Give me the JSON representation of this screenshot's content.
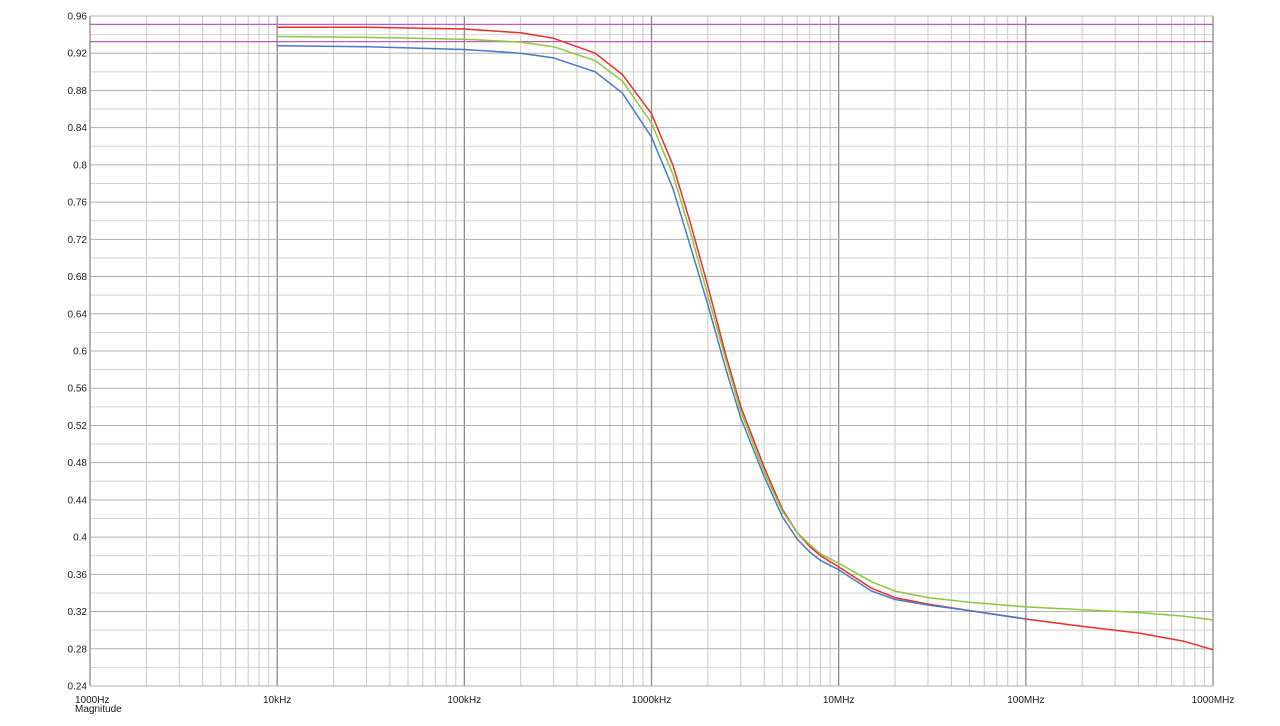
{
  "chart_data": {
    "type": "line",
    "xscale": "log",
    "xlim": [
      1000,
      1000000000
    ],
    "ylim": [
      0.24,
      0.96
    ],
    "grid": true,
    "ylabel": "Magnitude",
    "xtick_labels": [
      "1000Hz",
      "10kHz",
      "100kHz",
      "1000kHz",
      "10MHz",
      "100MHz",
      "1000MHz"
    ],
    "ytick_labels": [
      "0.24",
      "0.28",
      "0.32",
      "0.36",
      "0.4",
      "0.44",
      "0.48",
      "0.52",
      "0.56",
      "0.6",
      "0.64",
      "0.68",
      "0.72",
      "0.76",
      "0.8",
      "0.84",
      "0.88",
      "0.92",
      "0.96"
    ],
    "reference_lines": [
      {
        "y": 0.951,
        "color": "#c05ac0"
      },
      {
        "y": 0.9325,
        "color": "#c05ac0"
      }
    ],
    "series": [
      {
        "color": "#e8302a",
        "points": [
          [
            10000,
            0.948
          ],
          [
            30000,
            0.948
          ],
          [
            100000,
            0.946
          ],
          [
            200000,
            0.942
          ],
          [
            300000,
            0.936
          ],
          [
            500000,
            0.92
          ],
          [
            700000,
            0.897
          ],
          [
            1000000,
            0.855
          ],
          [
            1300000,
            0.8
          ],
          [
            1600000,
            0.74
          ],
          [
            2000000,
            0.67
          ],
          [
            2500000,
            0.595
          ],
          [
            3000000,
            0.54
          ],
          [
            4000000,
            0.475
          ],
          [
            5000000,
            0.43
          ],
          [
            6000000,
            0.405
          ],
          [
            7000000,
            0.39
          ],
          [
            8000000,
            0.38
          ],
          [
            10000000,
            0.368
          ],
          [
            15000000,
            0.345
          ],
          [
            20000000,
            0.335
          ],
          [
            30000000,
            0.328
          ],
          [
            50000000,
            0.321
          ],
          [
            100000000,
            0.312
          ],
          [
            200000000,
            0.304
          ],
          [
            400000000,
            0.297
          ],
          [
            700000000,
            0.288
          ],
          [
            1000000000,
            0.279
          ]
        ]
      },
      {
        "color": "#8cc63e",
        "points": [
          [
            10000,
            0.938
          ],
          [
            30000,
            0.937
          ],
          [
            100000,
            0.935
          ],
          [
            200000,
            0.932
          ],
          [
            300000,
            0.927
          ],
          [
            500000,
            0.912
          ],
          [
            700000,
            0.89
          ],
          [
            1000000,
            0.845
          ],
          [
            1300000,
            0.79
          ],
          [
            1600000,
            0.73
          ],
          [
            2000000,
            0.66
          ],
          [
            2500000,
            0.59
          ],
          [
            3000000,
            0.535
          ],
          [
            4000000,
            0.47
          ],
          [
            5000000,
            0.428
          ],
          [
            6000000,
            0.405
          ],
          [
            7000000,
            0.392
          ],
          [
            8000000,
            0.382
          ],
          [
            10000000,
            0.372
          ],
          [
            15000000,
            0.352
          ],
          [
            20000000,
            0.342
          ],
          [
            30000000,
            0.335
          ],
          [
            50000000,
            0.33
          ],
          [
            100000000,
            0.325
          ],
          [
            200000000,
            0.322
          ],
          [
            400000000,
            0.319
          ],
          [
            700000000,
            0.315
          ],
          [
            1000000000,
            0.311
          ]
        ]
      },
      {
        "color": "#4a78c8",
        "points": [
          [
            10000,
            0.928
          ],
          [
            30000,
            0.927
          ],
          [
            100000,
            0.924
          ],
          [
            200000,
            0.92
          ],
          [
            300000,
            0.915
          ],
          [
            500000,
            0.9
          ],
          [
            700000,
            0.877
          ],
          [
            1000000,
            0.83
          ],
          [
            1300000,
            0.775
          ],
          [
            1600000,
            0.715
          ],
          [
            2000000,
            0.65
          ],
          [
            2500000,
            0.58
          ],
          [
            3000000,
            0.528
          ],
          [
            4000000,
            0.465
          ],
          [
            5000000,
            0.422
          ],
          [
            6000000,
            0.398
          ],
          [
            7000000,
            0.384
          ],
          [
            8000000,
            0.375
          ],
          [
            10000000,
            0.365
          ],
          [
            15000000,
            0.342
          ],
          [
            20000000,
            0.333
          ],
          [
            30000000,
            0.327
          ],
          [
            50000000,
            0.321
          ],
          [
            100000000,
            0.312
          ]
        ]
      }
    ]
  }
}
